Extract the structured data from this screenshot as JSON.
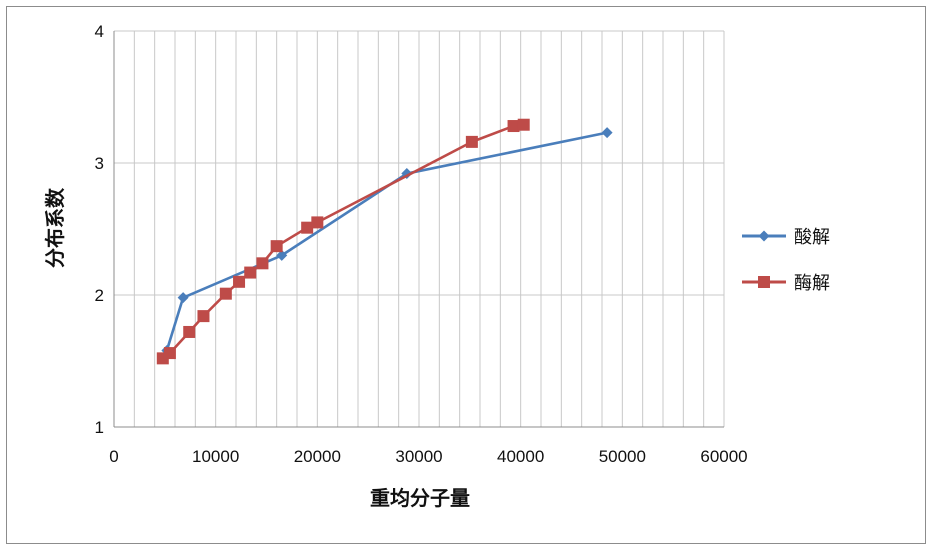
{
  "chart_data": {
    "type": "line",
    "title": "",
    "xlabel": "重均分子量",
    "ylabel": "分布系数",
    "xlim": [
      0,
      60000
    ],
    "ylim": [
      1,
      4
    ],
    "x_ticks": [
      "0",
      "10000",
      "20000",
      "30000",
      "40000",
      "50000",
      "60000"
    ],
    "y_ticks": [
      "1",
      "2",
      "3",
      "4"
    ],
    "grid": true,
    "legend_position": "right",
    "series": [
      {
        "name": "酸解",
        "color": "#4A7EBB",
        "marker": "diamond",
        "points": [
          {
            "x": 5200,
            "y": 1.58
          },
          {
            "x": 6800,
            "y": 1.98
          },
          {
            "x": 16500,
            "y": 2.3
          },
          {
            "x": 28800,
            "y": 2.92
          },
          {
            "x": 48500,
            "y": 3.23
          }
        ]
      },
      {
        "name": "酶解",
        "color": "#BE4B48",
        "marker": "square",
        "points": [
          {
            "x": 4800,
            "y": 1.52
          },
          {
            "x": 5500,
            "y": 1.56
          },
          {
            "x": 7400,
            "y": 1.72
          },
          {
            "x": 8800,
            "y": 1.84
          },
          {
            "x": 11000,
            "y": 2.01
          },
          {
            "x": 12300,
            "y": 2.1
          },
          {
            "x": 13400,
            "y": 2.17
          },
          {
            "x": 14600,
            "y": 2.24
          },
          {
            "x": 16000,
            "y": 2.37
          },
          {
            "x": 19000,
            "y": 2.51
          },
          {
            "x": 20000,
            "y": 2.55
          },
          {
            "x": 35200,
            "y": 3.16
          },
          {
            "x": 39300,
            "y": 3.28
          },
          {
            "x": 40300,
            "y": 3.29
          }
        ]
      }
    ]
  }
}
